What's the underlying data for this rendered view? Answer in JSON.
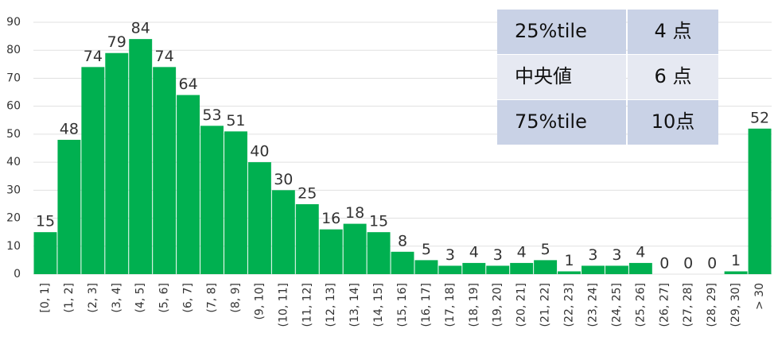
{
  "chart_data": {
    "type": "bar",
    "categories": [
      "[0, 1]",
      "(1, 2]",
      "(2, 3]",
      "(3, 4]",
      "(4, 5]",
      "(5, 6]",
      "(6, 7]",
      "(7, 8]",
      "(8, 9]",
      "(9, 10]",
      "(10, 11]",
      "(11, 12]",
      "(12, 13]",
      "(13, 14]",
      "(14, 15]",
      "(15, 16]",
      "(16, 17]",
      "(17, 18]",
      "(18, 19]",
      "(19, 20]",
      "(20, 21]",
      "(21, 22]",
      "(22, 23]",
      "(23, 24]",
      "(24, 25]",
      "(25, 26]",
      "(26, 27]",
      "(27, 28]",
      "(28, 29]",
      "(29, 30]",
      "> 30"
    ],
    "values": [
      15,
      48,
      74,
      79,
      84,
      74,
      64,
      53,
      51,
      40,
      30,
      25,
      16,
      18,
      15,
      8,
      5,
      3,
      4,
      3,
      4,
      5,
      1,
      3,
      3,
      4,
      0,
      0,
      0,
      1,
      52
    ],
    "color": "#00b050",
    "ylim": [
      0,
      90
    ],
    "yticks": [
      0,
      10,
      20,
      30,
      40,
      50,
      60,
      70,
      80,
      90
    ],
    "grid": true
  },
  "table": {
    "rows": [
      [
        "25%tile",
        "4 点"
      ],
      [
        "中央値",
        "6 点"
      ],
      [
        "75%tile",
        "10点"
      ]
    ]
  }
}
